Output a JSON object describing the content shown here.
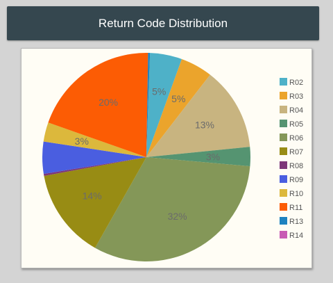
{
  "title": "Return Code Distribution",
  "chart_data": {
    "type": "pie",
    "title": "Return Code Distribution",
    "legend_position": "right",
    "slices": [
      {
        "name": "R02",
        "value": 5,
        "label": "5%",
        "color": "#4eb1c8"
      },
      {
        "name": "R03",
        "value": 5,
        "label": "5%",
        "color": "#eba42c"
      },
      {
        "name": "R04",
        "value": 13,
        "label": "13%",
        "color": "#c8b480"
      },
      {
        "name": "R05",
        "value": 3,
        "label": "3%",
        "color": "#559471"
      },
      {
        "name": "R06",
        "value": 32,
        "label": "32%",
        "color": "#849758"
      },
      {
        "name": "R07",
        "value": 14,
        "label": "14%",
        "color": "#988c14"
      },
      {
        "name": "R08",
        "value": 0.3,
        "label": "",
        "color": "#7d3779"
      },
      {
        "name": "R09",
        "value": 5,
        "label": "",
        "color": "#4a5ee0"
      },
      {
        "name": "R10",
        "value": 3,
        "label": "3%",
        "color": "#dcb83c"
      },
      {
        "name": "R11",
        "value": 20,
        "label": "20%",
        "color": "#fc5c04"
      },
      {
        "name": "R13",
        "value": 0.3,
        "label": "",
        "color": "#1e82c0"
      },
      {
        "name": "R14",
        "value": 0,
        "label": "",
        "color": "#c85ab4"
      }
    ]
  }
}
